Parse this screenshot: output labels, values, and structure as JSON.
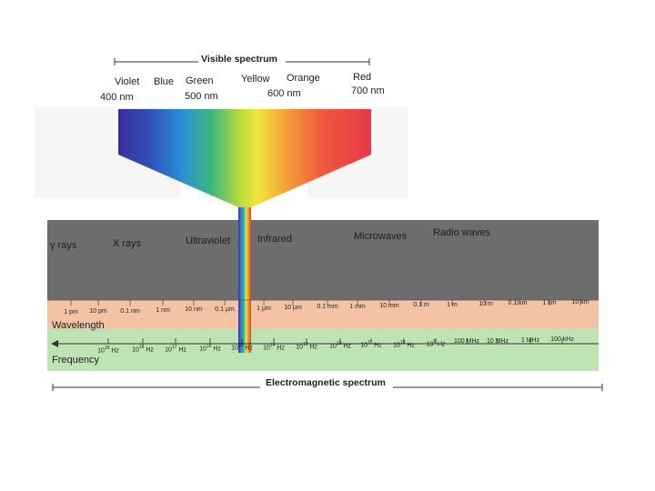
{
  "visible": {
    "title": "Visible spectrum",
    "colors": [
      "Violet",
      "Blue",
      "Green",
      "Yellow",
      "Orange",
      "Red"
    ],
    "wavelengths": [
      "400 nm",
      "500 nm",
      "600 nm",
      "700 nm"
    ]
  },
  "em": {
    "title": "Electromagnetic spectrum",
    "regions": [
      "γ rays",
      "X rays",
      "Ultraviolet",
      "Infrared",
      "Microwaves",
      "Radio waves"
    ],
    "wavelength_label": "Wavelength",
    "frequency_label": "Frequency",
    "wavelength_ticks": [
      "1 pm",
      "10 pm",
      "0.1 nm",
      "1 nm",
      "10 nm",
      "0.1 µm",
      "1 µm",
      "10 µm",
      "0.1 mm",
      "1 mm",
      "10 mm",
      "0.1 m",
      "1 m",
      "10 m",
      "0.1 km",
      "1 km",
      "10 km"
    ],
    "frequency_ticks": [
      {
        "base": "10",
        "exp": "19",
        "unit": "Hz"
      },
      {
        "base": "10",
        "exp": "18",
        "unit": "Hz"
      },
      {
        "base": "10",
        "exp": "17",
        "unit": "Hz"
      },
      {
        "base": "10",
        "exp": "16",
        "unit": "Hz"
      },
      {
        "base": "10",
        "exp": "15",
        "unit": "Hz"
      },
      {
        "base": "10",
        "exp": "14",
        "unit": "Hz"
      },
      {
        "base": "10",
        "exp": "13",
        "unit": "Hz"
      },
      {
        "base": "10",
        "exp": "12",
        "unit": "Hz"
      },
      {
        "base": "10",
        "exp": "11",
        "unit": "Hz"
      },
      {
        "base": "10",
        "exp": "10",
        "unit": "Hz"
      },
      {
        "base": "10",
        "exp": "9",
        "unit": "Hz"
      },
      {
        "base": "100 MHz",
        "exp": "",
        "unit": ""
      },
      {
        "base": "10 MHz",
        "exp": "",
        "unit": ""
      },
      {
        "base": "1 MHz",
        "exp": "",
        "unit": ""
      },
      {
        "base": "100 kHz",
        "exp": "",
        "unit": ""
      }
    ]
  },
  "colors": {
    "em_band": "#6d6d6d",
    "wavelength_band": "#f4c3a6",
    "frequency_band": "#bfe4b3",
    "faint_box": "#f7f7f7"
  }
}
